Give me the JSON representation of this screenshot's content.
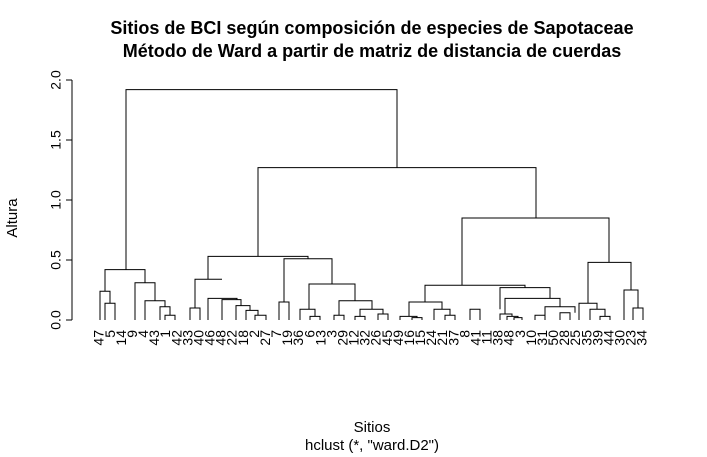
{
  "chart_data": {
    "type": "dendrogram",
    "title": [
      "Sitios de BCI según composición de especies de Sapotaceae",
      "Método de Ward a partir de matriz de distancia de cuerdas"
    ],
    "xlabel": "Sitios",
    "sublabel": "hclust (*, \"ward.D2\")",
    "ylabel": "Altura",
    "ylim": [
      0,
      2
    ],
    "yticks": [
      "0.0",
      "0.5",
      "1.0",
      "1.5",
      "2.0"
    ],
    "leaves": [
      "47",
      "5",
      "14",
      "9",
      "4",
      "43",
      "1",
      "42",
      "33",
      "40",
      "46",
      "48",
      "22",
      "18",
      "2",
      "27",
      "7",
      "19",
      "36",
      "6",
      "13",
      "3",
      "29",
      "12",
      "32",
      "26",
      "45",
      "49",
      "16",
      "15",
      "24",
      "21",
      "37",
      "8",
      "41",
      "11",
      "38",
      "48",
      "3",
      "10",
      "31",
      "50",
      "28",
      "25",
      "35",
      "39",
      "44",
      "30",
      "23",
      "34"
    ],
    "merges": [
      {
        "l": [
          0,
          1,
          2,
          3,
          4,
          5,
          6,
          7
        ],
        "x0": 105,
        "x1": 145,
        "h": 0.42,
        "b0": 0.24,
        "b1": 0.31
      },
      {
        "l": [
          0,
          1,
          2,
          3
        ],
        "x0": 100,
        "x1": 110,
        "h": 0.24,
        "b0": 0,
        "b1": 0.14
      },
      {
        "l": [
          1,
          2,
          3
        ],
        "x0": 105,
        "x1": 115,
        "h": 0.14,
        "b0": 0,
        "b1": 0
      },
      {
        "l": [
          4,
          5,
          6,
          7
        ],
        "x0": 135,
        "x1": 155,
        "h": 0.31,
        "b0": 0,
        "b1": 0.16
      },
      {
        "l": [
          5,
          6,
          7
        ],
        "x0": 145,
        "x1": 165,
        "h": 0.16,
        "b0": 0,
        "b1": 0.11
      },
      {
        "l": [
          6,
          7
        ],
        "x0": 160,
        "x1": 170,
        "h": 0.11,
        "b0": 0,
        "b1": 0.04
      },
      {
        "l": [
          7
        ],
        "x0": 165,
        "x1": 175,
        "h": 0.04,
        "b0": 0,
        "b1": 0
      },
      {
        "l": [
          8,
          9,
          10,
          11,
          12,
          13,
          14,
          15,
          16,
          17,
          18,
          19,
          20,
          21,
          22,
          23,
          24,
          25,
          26,
          27
        ],
        "x0": 208,
        "x1": 308,
        "h": 0.53,
        "b0": 0.34,
        "b1": 0.51
      },
      {
        "l": [
          8,
          9,
          10,
          11,
          12,
          13,
          14,
          15
        ],
        "x0": 195,
        "x1": 222,
        "h": 0.34,
        "b0": 0.1,
        "b1": 0.34
      },
      {
        "l": [
          8
        ],
        "x0": 190,
        "x1": 200,
        "h": 0.1,
        "b0": 0,
        "b1": 0
      },
      {
        "l": [
          9,
          10,
          11,
          12,
          13,
          14,
          15
        ],
        "x0": 208,
        "x1": 237,
        "h": 0.18,
        "b0": 0,
        "b1": 0.17
      },
      {
        "l": [
          10,
          11,
          12,
          13,
          14,
          15
        ],
        "x0": 222,
        "x1": 241,
        "h": 0.17,
        "b0": 0,
        "b1": 0.12
      },
      {
        "l": [
          11,
          12,
          13,
          14,
          15
        ],
        "x0": 236,
        "x1": 250,
        "h": 0.12,
        "b0": 0,
        "b1": 0.08
      },
      {
        "l": [
          12,
          13,
          14,
          15
        ],
        "x0": 246,
        "x1": 258,
        "h": 0.08,
        "b0": 0,
        "b1": 0.04
      },
      {
        "l": [
          13,
          14,
          15
        ],
        "x0": 255,
        "x1": 266,
        "h": 0.04,
        "b0": 0,
        "b1": 0
      },
      {
        "l": [
          16,
          17,
          18,
          19,
          20,
          21,
          22,
          23,
          24,
          25,
          26,
          27
        ],
        "x0": 284,
        "x1": 332,
        "h": 0.51,
        "b0": 0.15,
        "b1": 0.3
      },
      {
        "l": [
          16,
          17
        ],
        "x0": 279,
        "x1": 289,
        "h": 0.15,
        "b0": 0,
        "b1": 0
      },
      {
        "l": [
          18,
          19,
          20,
          21,
          22,
          23,
          24,
          25,
          26,
          27
        ],
        "x0": 309,
        "x1": 355,
        "h": 0.3,
        "b0": 0.09,
        "b1": 0.16
      },
      {
        "l": [
          18,
          19
        ],
        "x0": 300,
        "x1": 315,
        "h": 0.09,
        "b0": 0,
        "b1": 0.03
      },
      {
        "l": [
          19
        ],
        "x0": 310,
        "x1": 320,
        "h": 0.03,
        "b0": 0,
        "b1": 0
      },
      {
        "l": [
          20,
          21,
          22,
          23,
          24,
          25,
          26,
          27
        ],
        "x0": 339,
        "x1": 372,
        "h": 0.16,
        "b0": 0.04,
        "b1": 0.09
      },
      {
        "l": [
          20
        ],
        "x0": 334,
        "x1": 344,
        "h": 0.04,
        "b0": 0,
        "b1": 0
      },
      {
        "l": [
          21,
          22,
          23,
          24,
          25,
          26,
          27
        ],
        "x0": 360,
        "x1": 383,
        "h": 0.09,
        "b0": 0.03,
        "b1": 0.05
      },
      {
        "l": [
          21
        ],
        "x0": 355,
        "x1": 365,
        "h": 0.03,
        "b0": 0,
        "b1": 0
      },
      {
        "l": [
          22,
          23,
          24,
          25,
          26,
          27
        ],
        "x0": 378,
        "x1": 388,
        "h": 0.05,
        "b0": 0,
        "b1": 0
      },
      {
        "l": [
          28,
          29,
          30,
          31,
          32,
          33,
          34,
          35,
          36,
          37,
          38,
          39,
          40,
          41,
          42,
          43,
          44,
          45,
          46,
          47,
          48,
          49
        ],
        "x0": 462,
        "x1": 609,
        "h": 0.85,
        "b0": 0.29,
        "b1": 0.48
      },
      {
        "l": [
          28,
          29,
          30,
          31,
          32,
          33,
          34,
          35,
          36,
          37,
          38,
          39,
          40,
          41,
          42
        ],
        "x0": 425,
        "x1": 525,
        "h": 0.29,
        "b0": 0.15,
        "b1": 0.27
      },
      {
        "l": [
          28,
          29,
          30,
          31,
          32,
          33
        ],
        "x0": 409,
        "x1": 442,
        "h": 0.15,
        "b0": 0.03,
        "b1": 0.09
      },
      {
        "l": [
          28,
          29
        ],
        "x0": 400,
        "x1": 417,
        "h": 0.03,
        "b0": 0,
        "b1": 0.02
      },
      {
        "l": [
          29
        ],
        "x0": 412,
        "x1": 422,
        "h": 0.02,
        "b0": 0,
        "b1": 0
      },
      {
        "l": [
          30,
          31,
          32,
          33
        ],
        "x0": 434,
        "x1": 450,
        "h": 0.09,
        "b0": 0,
        "b1": 0.04
      },
      {
        "l": [
          31,
          32,
          33
        ],
        "x0": 445,
        "x1": 455,
        "h": 0.04,
        "b0": 0,
        "b1": 0
      },
      {
        "l": [
          34,
          35,
          36,
          37,
          38,
          39,
          40,
          41,
          42
        ],
        "x0": 500,
        "x1": 550,
        "h": 0.27,
        "b0": 0.09,
        "b1": 0.18
      },
      {
        "l": [
          34,
          35
        ],
        "x0": 470,
        "x1": 480,
        "h": 0.09,
        "b0": 0,
        "b1": 0
      },
      {
        "l": [
          36,
          37,
          38,
          39,
          40,
          41,
          42
        ],
        "x0": 505,
        "x1": 560,
        "h": 0.18,
        "b0": 0.05,
        "b1": 0.11
      },
      {
        "l": [
          36,
          37,
          38,
          39
        ],
        "x0": 500,
        "x1": 512,
        "h": 0.05,
        "b0": 0,
        "b1": 0.03
      },
      {
        "l": [
          37,
          38,
          39
        ],
        "x0": 507,
        "x1": 518,
        "h": 0.03,
        "b0": 0,
        "b1": 0.02
      },
      {
        "l": [
          38,
          39
        ],
        "x0": 514,
        "x1": 522,
        "h": 0.02,
        "b0": 0,
        "b1": 0
      },
      {
        "l": [
          40,
          41,
          42
        ],
        "x0": 545,
        "x1": 575,
        "h": 0.11,
        "b0": 0.04,
        "b1": 0.06
      },
      {
        "l": [
          40
        ],
        "x0": 535,
        "x1": 545,
        "h": 0.04,
        "b0": 0,
        "b1": 0
      },
      {
        "l": [
          41,
          42
        ],
        "x0": 560,
        "x1": 570,
        "h": 0.06,
        "b0": 0,
        "b1": 0
      },
      {
        "l": [
          43,
          44,
          45,
          46,
          47,
          48,
          49
        ],
        "x0": 588,
        "x1": 631,
        "h": 0.48,
        "b0": 0.14,
        "b1": 0.25
      },
      {
        "l": [
          43,
          44,
          45,
          46
        ],
        "x0": 579,
        "x1": 597,
        "h": 0.14,
        "b0": 0,
        "b1": 0.09
      },
      {
        "l": [
          44,
          45,
          46
        ],
        "x0": 590,
        "x1": 605,
        "h": 0.09,
        "b0": 0,
        "b1": 0.03
      },
      {
        "l": [
          45,
          46
        ],
        "x0": 600,
        "x1": 610,
        "h": 0.03,
        "b0": 0,
        "b1": 0
      },
      {
        "l": [
          47,
          48,
          49
        ],
        "x0": 624,
        "x1": 638,
        "h": 0.25,
        "b0": 0,
        "b1": 0.1
      },
      {
        "l": [
          48,
          49
        ],
        "x0": 633,
        "x1": 643,
        "h": 0.1,
        "b0": 0,
        "b1": 0
      }
    ]
  }
}
